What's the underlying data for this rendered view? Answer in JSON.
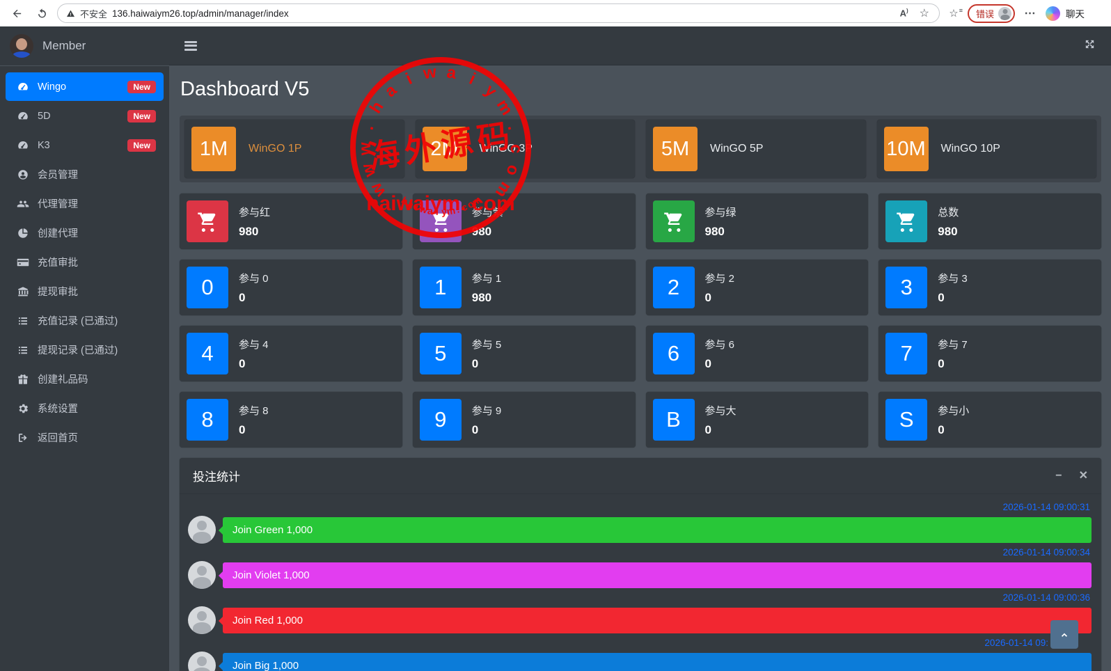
{
  "browser": {
    "security_label": "不安全",
    "url": "136.haiwaiym26.top/admin/manager/index",
    "profile_badge": "错误",
    "copilot_label": "聊天"
  },
  "sidebar": {
    "brand": "Member",
    "items": [
      {
        "label": "Wingo",
        "badge": "New"
      },
      {
        "label": "5D",
        "badge": "New"
      },
      {
        "label": "K3",
        "badge": "New"
      },
      {
        "label": "会员管理"
      },
      {
        "label": "代理管理"
      },
      {
        "label": "创建代理"
      },
      {
        "label": "充值审批"
      },
      {
        "label": "提现审批"
      },
      {
        "label": "充值记录 (已通过)"
      },
      {
        "label": "提现记录 (已通过)"
      },
      {
        "label": "创建礼品码"
      },
      {
        "label": "系统设置"
      },
      {
        "label": "返回首页"
      }
    ]
  },
  "page": {
    "title": "Dashboard V5"
  },
  "wingo_cards": [
    {
      "abbr": "1M",
      "label": "WinGO 1P"
    },
    {
      "abbr": "2M",
      "label": "WinGO 3P"
    },
    {
      "abbr": "5M",
      "label": "WinGO 5P"
    },
    {
      "abbr": "10M",
      "label": "WinGO 10P"
    }
  ],
  "summary_cards": [
    {
      "label": "参与红",
      "value": "980",
      "color": "#dc3545"
    },
    {
      "label": "参与紫",
      "value": "980",
      "color": "#9454bd"
    },
    {
      "label": "参与绿",
      "value": "980",
      "color": "#28a745"
    },
    {
      "label": "总数",
      "value": "980",
      "color": "#17a2b8"
    }
  ],
  "number_cards": [
    {
      "digit": "0",
      "label": "参与 0",
      "value": "0"
    },
    {
      "digit": "1",
      "label": "参与 1",
      "value": "980"
    },
    {
      "digit": "2",
      "label": "参与 2",
      "value": "0"
    },
    {
      "digit": "3",
      "label": "参与 3",
      "value": "0"
    },
    {
      "digit": "4",
      "label": "参与 4",
      "value": "0"
    },
    {
      "digit": "5",
      "label": "参与 5",
      "value": "0"
    },
    {
      "digit": "6",
      "label": "参与 6",
      "value": "0"
    },
    {
      "digit": "7",
      "label": "参与 7",
      "value": "0"
    },
    {
      "digit": "8",
      "label": "参与 8",
      "value": "0"
    },
    {
      "digit": "9",
      "label": "参与 9",
      "value": "0"
    },
    {
      "digit": "B",
      "label": "参与大",
      "value": "0"
    },
    {
      "digit": "S",
      "label": "参与小",
      "value": "0"
    }
  ],
  "bet_panel": {
    "title": "投注统计",
    "entries": [
      {
        "time": "2026-01-14 09:00:31",
        "text": "Join Green 1,000",
        "color": "#28c738"
      },
      {
        "time": "2026-01-14 09:00:34",
        "text": "Join Violet 1,000",
        "color": "#e23df0"
      },
      {
        "time": "2026-01-14 09:00:36",
        "text": "Join Red 1,000",
        "color": "#f22731"
      },
      {
        "time": "2026-01-14 09:",
        "text": "Join Big 1,000",
        "color": "#0c7cd9"
      }
    ]
  },
  "watermark": {
    "arc_text": "www.haiwaiym.com",
    "center_text": "海外源码",
    "site_text": "haiwaiym. com",
    "bottom_arc_text": "haiwaiym.com",
    "color": "#f10505"
  },
  "colors": {
    "accent_blue": "#007bff",
    "orange": "#eb8c28",
    "badge_red": "#dc3545",
    "card_bg": "#343a40",
    "page_bg": "#4a525a",
    "timestamp_blue": "#1a6aff"
  }
}
